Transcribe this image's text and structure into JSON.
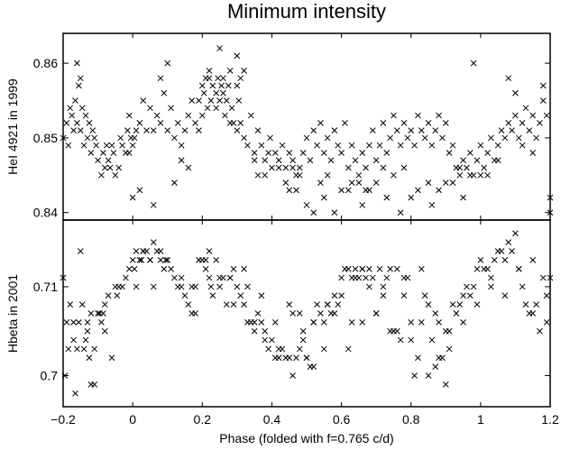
{
  "title": "Minimum intensity",
  "chart_data": [
    {
      "type": "scatter",
      "ylabel": "HeI 4921 in 1999",
      "xlim": [
        -0.2,
        1.2
      ],
      "ylim": [
        0.839,
        0.864
      ],
      "yticks": [
        0.84,
        0.85,
        0.86
      ],
      "ytick_labels": [
        "0.84",
        "0.85",
        "0.86"
      ],
      "marker": "x",
      "x": [
        -0.2,
        -0.19,
        -0.185,
        -0.18,
        -0.175,
        -0.17,
        -0.165,
        -0.16,
        -0.155,
        -0.15,
        -0.145,
        -0.14,
        -0.135,
        -0.13,
        -0.125,
        -0.12,
        -0.115,
        -0.11,
        -0.105,
        -0.1,
        -0.09,
        -0.085,
        -0.08,
        -0.075,
        -0.07,
        -0.065,
        -0.06,
        -0.055,
        -0.05,
        -0.04,
        -0.035,
        -0.03,
        -0.02,
        -0.015,
        -0.01,
        -0.005,
        0.0,
        0.005,
        0.01,
        0.02,
        0.03,
        0.04,
        0.05,
        0.06,
        0.07,
        0.08,
        0.09,
        0.1,
        0.11,
        0.12,
        0.13,
        0.14,
        0.15,
        0.16,
        0.17,
        0.18,
        0.19,
        0.2,
        0.205,
        0.21,
        0.215,
        0.22,
        0.225,
        0.23,
        0.24,
        0.245,
        0.25,
        0.255,
        0.26,
        0.265,
        0.27,
        0.275,
        0.28,
        0.285,
        0.29,
        0.3,
        0.305,
        0.31,
        0.32,
        0.33,
        0.34,
        0.35,
        0.36,
        0.37,
        0.38,
        0.39,
        0.395,
        0.4,
        0.41,
        0.42,
        0.43,
        0.44,
        0.45,
        0.46,
        0.47,
        0.48,
        0.49,
        0.5,
        0.51,
        0.52,
        0.53,
        0.54,
        0.55,
        0.56,
        0.57,
        0.58,
        0.59,
        0.6,
        0.61,
        0.62,
        0.63,
        0.64,
        0.65,
        0.66,
        0.67,
        0.68,
        0.69,
        0.7,
        0.71,
        0.72,
        0.73,
        0.74,
        0.75,
        0.76,
        0.77,
        0.78,
        0.79,
        0.8,
        0.81,
        0.82,
        0.83,
        0.84,
        0.85,
        0.86,
        0.87,
        0.88,
        0.89,
        0.9,
        0.91,
        0.92,
        0.93,
        0.94,
        0.95,
        0.96,
        0.97,
        0.98,
        0.99,
        1.0,
        1.01,
        1.02,
        1.03,
        1.04,
        1.05,
        1.06,
        1.07,
        1.08,
        1.09,
        1.1,
        1.11,
        1.12,
        1.13,
        1.14,
        1.15,
        1.16,
        1.17,
        1.18,
        1.19,
        1.2,
        -0.15,
        -0.16,
        0.08,
        0.1,
        0.22,
        0.25,
        0.3,
        0.32,
        0.31,
        0.3,
        0.28,
        0.26,
        0.24,
        0.2,
        0.19,
        0.12,
        0.06,
        0.45,
        0.52,
        0.55,
        0.58,
        0.62,
        0.66,
        0.7,
        0.73,
        0.77,
        0.82,
        0.86,
        0.92,
        0.95,
        0.98,
        1.08,
        1.1,
        1.18,
        1.2,
        0.38,
        0.47,
        0.5,
        0.65,
        0.67,
        0.8,
        0.85,
        0.88,
        1.0,
        1.02,
        0.0,
        0.02,
        -0.01,
        0.14,
        0.16,
        0.35,
        0.36,
        0.42,
        0.44,
        0.46,
        0.48,
        0.54,
        0.56,
        0.6,
        0.63,
        0.68,
        0.72,
        0.75,
        0.78,
        0.9,
        0.94,
        0.97,
        1.05,
        1.12,
        1.15
      ],
      "y": [
        0.85,
        0.852,
        0.849,
        0.854,
        0.853,
        0.851,
        0.855,
        0.852,
        0.857,
        0.851,
        0.854,
        0.849,
        0.853,
        0.85,
        0.852,
        0.848,
        0.851,
        0.85,
        0.849,
        0.847,
        0.845,
        0.848,
        0.846,
        0.849,
        0.847,
        0.846,
        0.849,
        0.848,
        0.845,
        0.846,
        0.85,
        0.849,
        0.848,
        0.851,
        0.853,
        0.85,
        0.849,
        0.85,
        0.851,
        0.852,
        0.855,
        0.851,
        0.854,
        0.851,
        0.853,
        0.852,
        0.856,
        0.851,
        0.854,
        0.85,
        0.852,
        0.849,
        0.851,
        0.853,
        0.855,
        0.852,
        0.851,
        0.853,
        0.856,
        0.858,
        0.854,
        0.859,
        0.855,
        0.857,
        0.854,
        0.858,
        0.855,
        0.857,
        0.856,
        0.853,
        0.855,
        0.857,
        0.852,
        0.854,
        0.852,
        0.851,
        0.855,
        0.852,
        0.85,
        0.849,
        0.853,
        0.848,
        0.851,
        0.849,
        0.847,
        0.848,
        0.85,
        0.846,
        0.848,
        0.847,
        0.849,
        0.846,
        0.848,
        0.847,
        0.845,
        0.846,
        0.848,
        0.85,
        0.847,
        0.851,
        0.849,
        0.852,
        0.848,
        0.85,
        0.847,
        0.851,
        0.849,
        0.848,
        0.852,
        0.846,
        0.849,
        0.847,
        0.845,
        0.848,
        0.846,
        0.849,
        0.851,
        0.847,
        0.849,
        0.852,
        0.848,
        0.85,
        0.853,
        0.851,
        0.849,
        0.852,
        0.85,
        0.851,
        0.849,
        0.853,
        0.851,
        0.85,
        0.852,
        0.849,
        0.851,
        0.853,
        0.85,
        0.852,
        0.848,
        0.849,
        0.846,
        0.845,
        0.847,
        0.846,
        0.848,
        0.845,
        0.847,
        0.849,
        0.846,
        0.848,
        0.85,
        0.847,
        0.849,
        0.851,
        0.85,
        0.852,
        0.851,
        0.853,
        0.85,
        0.852,
        0.854,
        0.851,
        0.853,
        0.85,
        0.852,
        0.855,
        0.853,
        0.84,
        0.858,
        0.86,
        0.858,
        0.86,
        0.858,
        0.862,
        0.861,
        0.859,
        0.858,
        0.857,
        0.859,
        0.858,
        0.856,
        0.857,
        0.855,
        0.844,
        0.841,
        0.843,
        0.84,
        0.842,
        0.84,
        0.843,
        0.841,
        0.844,
        0.842,
        0.84,
        0.843,
        0.841,
        0.844,
        0.842,
        0.86,
        0.858,
        0.856,
        0.857,
        0.842,
        0.845,
        0.843,
        0.841,
        0.844,
        0.843,
        0.842,
        0.844,
        0.843,
        0.845,
        0.845,
        0.842,
        0.843,
        0.848,
        0.847,
        0.846,
        0.847,
        0.845,
        0.846,
        0.844,
        0.846,
        0.845,
        0.844,
        0.845,
        0.843,
        0.844,
        0.843,
        0.846,
        0.845,
        0.846,
        0.844,
        0.846,
        0.845,
        0.847,
        0.849,
        0.848
      ]
    },
    {
      "type": "scatter",
      "xlabel": "Phase (folded with f=0.765 c/d)",
      "ylabel": "Hbeta in 2001",
      "xlim": [
        -0.2,
        1.2
      ],
      "ylim": [
        0.6965,
        0.7175
      ],
      "xticks": [
        -0.2,
        0,
        0.2,
        0.4,
        0.6,
        0.8,
        1,
        1.2
      ],
      "xtick_labels": [
        "−0.2",
        "0",
        "0.2",
        "0.4",
        "0.6",
        "0.8",
        "1",
        "1.2"
      ],
      "yticks": [
        0.7,
        0.71
      ],
      "ytick_labels": [
        "0.7",
        "0.71"
      ],
      "marker": "x",
      "x": [
        -0.2,
        -0.195,
        -0.19,
        -0.185,
        -0.18,
        -0.17,
        -0.165,
        -0.16,
        -0.155,
        -0.15,
        -0.145,
        -0.14,
        -0.135,
        -0.13,
        -0.125,
        -0.12,
        -0.11,
        -0.1,
        -0.095,
        -0.09,
        -0.085,
        -0.08,
        -0.07,
        -0.06,
        -0.05,
        -0.045,
        -0.04,
        -0.03,
        -0.02,
        -0.01,
        0.0,
        0.005,
        0.01,
        0.02,
        0.025,
        0.03,
        0.04,
        0.05,
        0.06,
        0.07,
        0.08,
        0.09,
        0.095,
        0.1,
        0.11,
        0.12,
        0.13,
        0.14,
        0.15,
        0.16,
        0.17,
        0.18,
        0.19,
        0.2,
        0.21,
        0.22,
        0.225,
        0.23,
        0.24,
        0.25,
        0.26,
        0.27,
        0.28,
        0.29,
        0.3,
        0.31,
        0.32,
        0.33,
        0.34,
        0.35,
        0.36,
        0.37,
        0.38,
        0.39,
        0.4,
        0.41,
        0.42,
        0.43,
        0.44,
        0.45,
        0.46,
        0.47,
        0.48,
        0.49,
        0.5,
        0.51,
        0.52,
        0.53,
        0.54,
        0.55,
        0.56,
        0.57,
        0.58,
        0.59,
        0.6,
        0.61,
        0.62,
        0.63,
        0.64,
        0.65,
        0.66,
        0.67,
        0.68,
        0.69,
        0.7,
        0.71,
        0.72,
        0.73,
        0.74,
        0.75,
        0.76,
        0.77,
        0.78,
        0.79,
        0.8,
        0.81,
        0.82,
        0.83,
        0.84,
        0.85,
        0.86,
        0.87,
        0.88,
        0.89,
        0.9,
        0.91,
        0.92,
        0.93,
        0.94,
        0.95,
        0.96,
        0.97,
        0.98,
        0.99,
        1.0,
        1.01,
        1.02,
        1.03,
        1.04,
        1.05,
        1.06,
        1.07,
        1.08,
        1.09,
        1.1,
        1.11,
        1.12,
        1.13,
        1.14,
        1.15,
        1.16,
        1.17,
        1.18,
        1.19,
        1.2,
        -0.2,
        -0.17,
        -0.13,
        -0.11,
        0.01,
        0.03,
        0.05,
        0.17,
        0.21,
        0.25,
        0.29,
        0.33,
        0.37,
        0.41,
        0.45,
        0.49,
        0.52,
        0.58,
        0.62,
        0.66,
        0.7,
        0.74,
        0.78,
        0.83,
        0.87,
        0.91,
        0.95,
        0.99,
        1.03,
        1.07,
        1.11,
        1.15,
        1.19,
        0.32,
        0.42,
        0.46,
        0.48,
        0.5,
        0.52,
        0.55,
        0.63,
        0.68,
        0.72,
        0.76,
        0.8,
        0.85,
        0.88,
        0.9,
        -0.12,
        -0.08,
        0.06,
        0.08,
        0.14,
        0.18,
        0.22,
        0.28,
        0.35,
        0.38,
        0.56,
        0.6,
        0.64,
        0.66
      ],
      "y": [
        0.711,
        0.7,
        0.706,
        0.703,
        0.708,
        0.706,
        0.698,
        0.703,
        0.706,
        0.714,
        0.708,
        0.703,
        0.704,
        0.706,
        0.702,
        0.699,
        0.703,
        0.707,
        0.707,
        0.706,
        0.707,
        0.708,
        0.709,
        0.702,
        0.71,
        0.709,
        0.71,
        0.71,
        0.711,
        0.712,
        0.713,
        0.712,
        0.714,
        0.713,
        0.713,
        0.714,
        0.714,
        0.713,
        0.715,
        0.714,
        0.714,
        0.712,
        0.713,
        0.713,
        0.712,
        0.711,
        0.71,
        0.711,
        0.709,
        0.708,
        0.707,
        0.71,
        0.713,
        0.713,
        0.712,
        0.711,
        0.71,
        0.709,
        0.713,
        0.71,
        0.711,
        0.708,
        0.711,
        0.708,
        0.71,
        0.709,
        0.708,
        0.706,
        0.706,
        0.705,
        0.707,
        0.706,
        0.705,
        0.703,
        0.704,
        0.702,
        0.702,
        0.703,
        0.702,
        0.702,
        0.707,
        0.702,
        0.707,
        0.704,
        0.702,
        0.701,
        0.706,
        0.708,
        0.707,
        0.706,
        0.708,
        0.707,
        0.709,
        0.708,
        0.711,
        0.712,
        0.712,
        0.711,
        0.712,
        0.711,
        0.712,
        0.711,
        0.712,
        0.711,
        0.707,
        0.712,
        0.709,
        0.711,
        0.705,
        0.705,
        0.705,
        0.704,
        0.709,
        0.711,
        0.706,
        0.7,
        0.702,
        0.706,
        0.709,
        0.708,
        0.704,
        0.701,
        0.706,
        0.702,
        0.699,
        0.703,
        0.708,
        0.707,
        0.708,
        0.709,
        0.71,
        0.709,
        0.71,
        0.712,
        0.713,
        0.712,
        0.712,
        0.711,
        0.713,
        0.714,
        0.714,
        0.713,
        0.715,
        0.714,
        0.716,
        0.712,
        0.71,
        0.708,
        0.707,
        0.707,
        0.708,
        0.705,
        0.711,
        0.709,
        0.711,
        0.711,
        0.704,
        0.705,
        0.699,
        0.71,
        0.714,
        0.713,
        0.71,
        0.713,
        0.711,
        0.712,
        0.71,
        0.709,
        0.706,
        0.708,
        0.705,
        0.706,
        0.707,
        0.703,
        0.706,
        0.707,
        0.712,
        0.711,
        0.712,
        0.707,
        0.705,
        0.706,
        0.708,
        0.71,
        0.709,
        0.712,
        0.713,
        0.706,
        0.712,
        0.703,
        0.7,
        0.703,
        0.702,
        0.701,
        0.703,
        0.706,
        0.71,
        0.71,
        0.712,
        0.704,
        0.7,
        0.702,
        0.705,
        0.707,
        0.705,
        0.71,
        0.713,
        0.71,
        0.707,
        0.714,
        0.711,
        0.706,
        0.704,
        0.708,
        0.709,
        0.711,
        0.712
      ]
    }
  ]
}
